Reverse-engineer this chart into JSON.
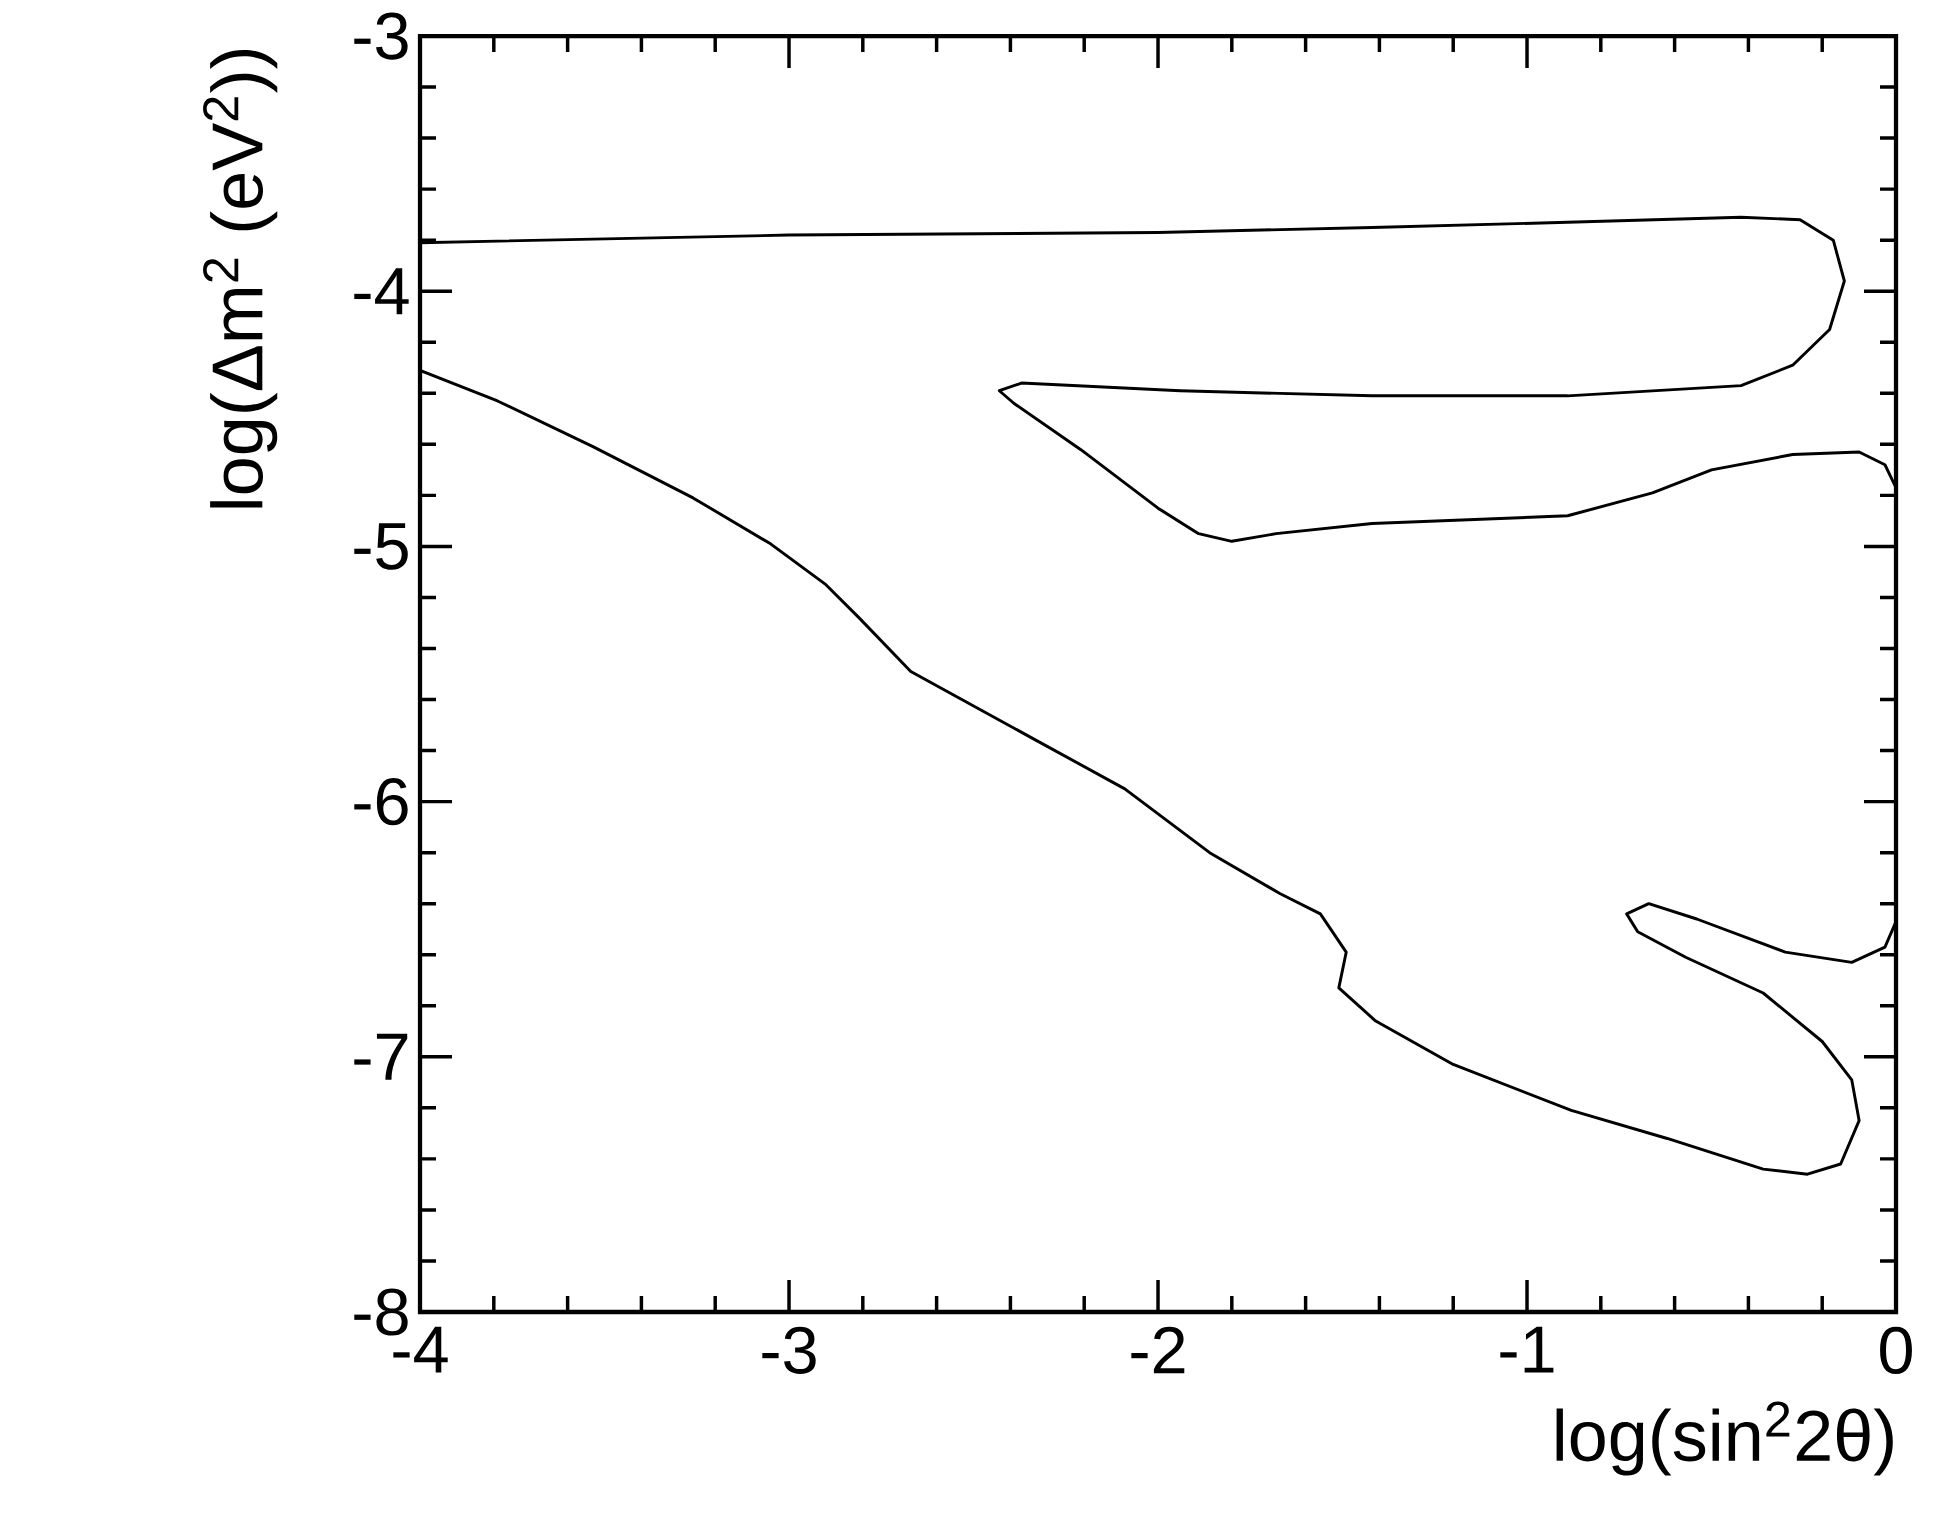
{
  "chart_data": {
    "type": "line",
    "xlabel": "log(sin$^{2}$2θ)",
    "ylabel": "log(Δm$^{2}$ (eV$^{2}$))",
    "xlim": [
      -4,
      0
    ],
    "ylim": [
      -8,
      -3
    ],
    "xticks": [
      -4,
      -3,
      -2,
      -1,
      0
    ],
    "yticks": [
      -8,
      -7,
      -6,
      -5,
      -4,
      -3
    ],
    "grid": false,
    "marker": "none",
    "line_style": "solid",
    "series": [
      {
        "color": "#000000",
        "x": [
          -4,
          -3.0,
          -2.0,
          -1.42,
          -0.89,
          -0.42,
          -0.26,
          -0.17,
          -0.14,
          -0.18,
          -0.28,
          -0.42,
          -0.89,
          -1.42,
          -1.94,
          -2.37,
          -2.43,
          -2.39,
          -2.21,
          -2.0,
          -1.89,
          -1.8,
          -1.68,
          -1.42,
          -0.89,
          -0.66,
          -0.5,
          -0.28,
          -0.1,
          -0.03,
          0
        ],
        "values": [
          -3.81,
          -3.78,
          -3.77,
          -3.75,
          -3.73,
          -3.71,
          -3.72,
          -3.8,
          -3.96,
          -4.15,
          -4.29,
          -4.37,
          -4.41,
          -4.41,
          -4.39,
          -4.36,
          -4.39,
          -4.44,
          -4.62,
          -4.85,
          -4.95,
          -4.98,
          -4.95,
          -4.91,
          -4.88,
          -4.79,
          -4.7,
          -4.64,
          -4.63,
          -4.68,
          -4.77
        ]
      },
      {
        "color": "#000000",
        "x": [
          -4,
          -3.79,
          -3.53,
          -3.26,
          -3.05,
          -2.9,
          -2.81,
          -2.67,
          -2.33,
          -2.09,
          -1.86,
          -1.67,
          -1.56,
          -1.49,
          -1.51,
          -1.41,
          -1.2,
          -0.88,
          -0.62,
          -0.36,
          -0.24,
          -0.15,
          -0.1,
          -0.12,
          -0.2,
          -0.36,
          -0.57,
          -0.7,
          -0.73,
          -0.67,
          -0.54,
          -0.3,
          -0.12,
          -0.03,
          0
        ],
        "values": [
          -4.31,
          -4.43,
          -4.61,
          -4.81,
          -4.99,
          -5.15,
          -5.28,
          -5.49,
          -5.76,
          -5.95,
          -6.2,
          -6.36,
          -6.44,
          -6.59,
          -6.73,
          -6.86,
          -7.03,
          -7.21,
          -7.32,
          -7.44,
          -7.46,
          -7.42,
          -7.25,
          -7.09,
          -6.94,
          -6.75,
          -6.61,
          -6.51,
          -6.44,
          -6.4,
          -6.46,
          -6.59,
          -6.63,
          -6.57,
          -6.47
        ]
      }
    ]
  }
}
